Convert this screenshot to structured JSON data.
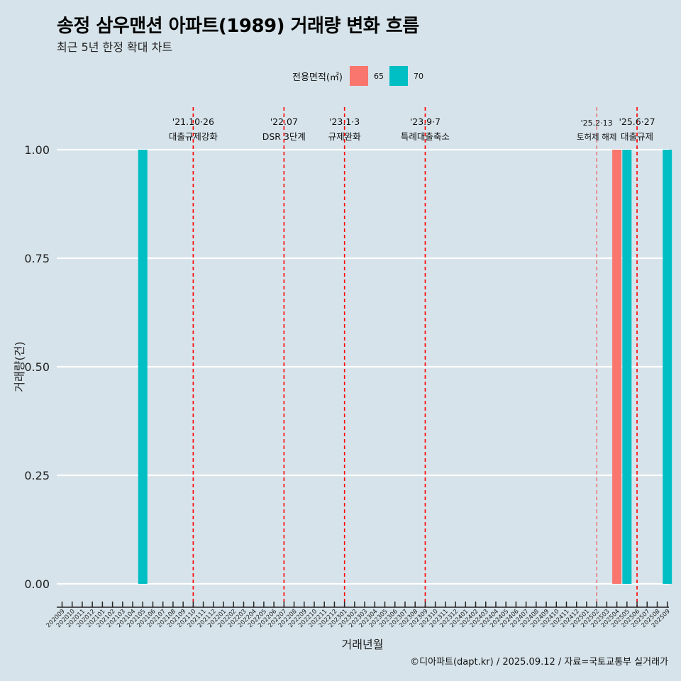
{
  "chart_data": {
    "type": "bar",
    "title": "송정 삼우맨션 아파트(1989) 거래량 변화 흐름",
    "subtitle": "최근 5년 한정 확대 차트",
    "xlabel": "거래년월",
    "ylabel": "거래량(건)",
    "ylim": [
      0,
      1
    ],
    "y_ticks": [
      "0.00",
      "0.25",
      "0.50",
      "0.75",
      "1.00"
    ],
    "legend": {
      "title": "전용면적(㎡)",
      "placement": "top-center",
      "entries": [
        {
          "name": "65",
          "color": "#f8766d"
        },
        {
          "name": "70",
          "color": "#00bfc4"
        }
      ]
    },
    "categories": [
      "202009",
      "202010",
      "202011",
      "202012",
      "202101",
      "202102",
      "202103",
      "202104",
      "202105",
      "202106",
      "202107",
      "202108",
      "202109",
      "202110",
      "202111",
      "202112",
      "202201",
      "202202",
      "202203",
      "202204",
      "202205",
      "202206",
      "202207",
      "202208",
      "202209",
      "202210",
      "202211",
      "202212",
      "202301",
      "202302",
      "202303",
      "202304",
      "202305",
      "202306",
      "202307",
      "202308",
      "202309",
      "202310",
      "202311",
      "202312",
      "202401",
      "202402",
      "202403",
      "202404",
      "202405",
      "202406",
      "202407",
      "202408",
      "202409",
      "202410",
      "202411",
      "202412",
      "202501",
      "202502",
      "202503",
      "202504",
      "202505",
      "202506",
      "202507",
      "202508",
      "202509"
    ],
    "bars": [
      {
        "month": "202105",
        "series": "70",
        "value": 1
      },
      {
        "month": "202504",
        "series": "65",
        "value": 1
      },
      {
        "month": "202505",
        "series": "70",
        "value": 1
      },
      {
        "month": "202509",
        "series": "70",
        "value": 1
      }
    ],
    "annotations": [
      {
        "month": "202110",
        "date": "'21.10·26",
        "label": "대출규제강화",
        "style": "bold"
      },
      {
        "month": "202207",
        "date": "'22.07",
        "label": "DSR 3단계",
        "style": "bold"
      },
      {
        "month": "202301",
        "date": "'23.1·3",
        "label": "규제완화",
        "style": "bold"
      },
      {
        "month": "202309",
        "date": "'23.9·7",
        "label": "특례대출축소",
        "style": "bold"
      },
      {
        "month": "202502",
        "date": "'25.2·13",
        "label": "토허제 해제",
        "style": "light"
      },
      {
        "month": "202506",
        "date": "'25.6·27",
        "label": "대출규제",
        "style": "bold"
      }
    ],
    "grid": true
  },
  "caption": "©디아파트(dapt.kr) / 2025.09.12 / 자료=국토교통부 실거래가",
  "colors": {
    "background": "#d6e3ea",
    "gridline": "#ffffff",
    "event_line": "#ff0000"
  }
}
